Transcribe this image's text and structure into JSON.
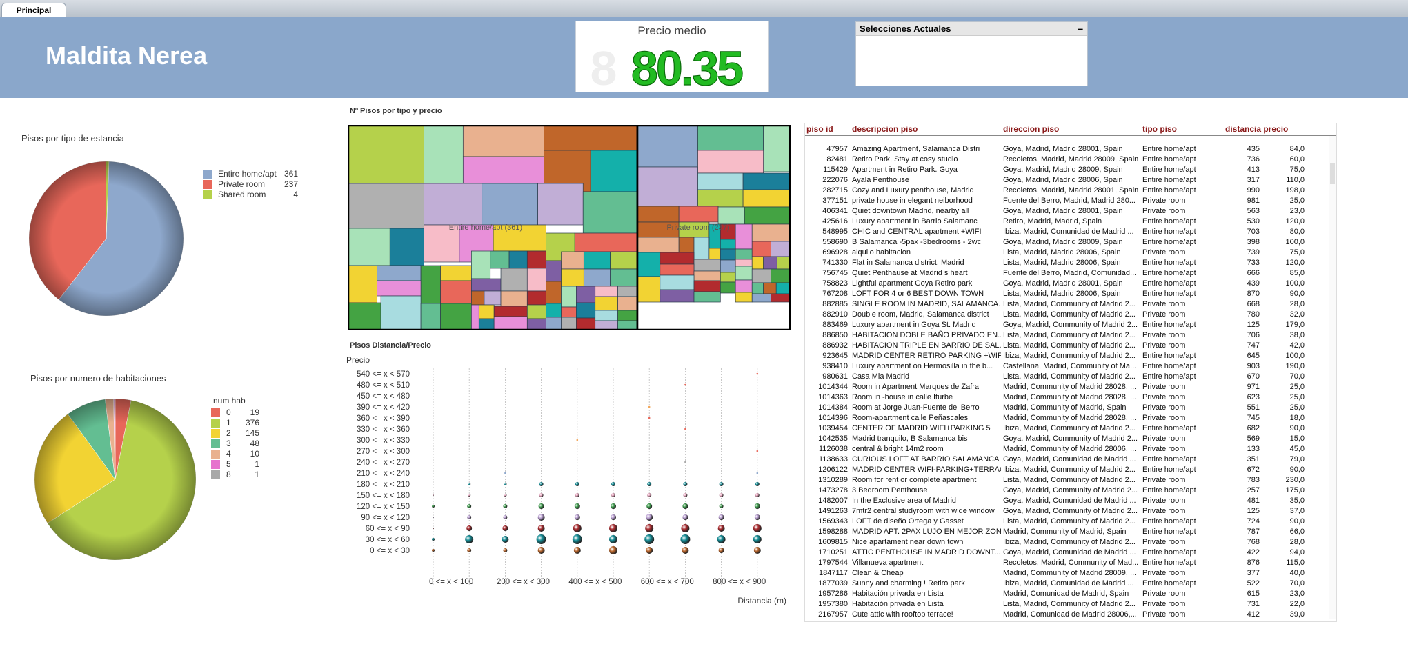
{
  "tabs": [
    {
      "label": "Principal"
    }
  ],
  "app_title": "Maldita Nerea",
  "kpi": {
    "label": "Precio medio",
    "value": "80.35",
    "ghost": "8",
    "color": "#22bb22"
  },
  "selections": {
    "title": "Selecciones Actuales",
    "minimize": "–"
  },
  "pie1": {
    "title": "Pisos por tipo de estancia",
    "chart_data": {
      "type": "pie",
      "categories": [
        "Entire home/apt",
        "Private room",
        "Shared room"
      ],
      "values": [
        361,
        237,
        4
      ],
      "colors": [
        "#8ea8cc",
        "#e8675a",
        "#b5d14b"
      ]
    }
  },
  "pie2": {
    "title": "Pisos por numero de habitaciones",
    "legend_title": "num hab",
    "chart_data": {
      "type": "pie",
      "categories": [
        "0",
        "1",
        "2",
        "3",
        "4",
        "5",
        "8"
      ],
      "values": [
        19,
        376,
        145,
        48,
        10,
        1,
        1
      ],
      "colors": [
        "#e8675a",
        "#b5d14b",
        "#f2d333",
        "#63be92",
        "#e9b18f",
        "#e673cd",
        "#a8a8a8"
      ]
    }
  },
  "treemap": {
    "title": "Nº Pisos por tipo y precio",
    "groups": [
      {
        "label": "Entire home/apt (361)"
      },
      {
        "label": "Private room (237)"
      }
    ]
  },
  "scatter": {
    "title": "Pisos Distancia/Precio",
    "ylabel": "Precio",
    "xlabel": "Distancia (m)",
    "chart_data": {
      "type": "scatter",
      "y_categories": [
        "540 <= x < 570",
        "480 <= x < 510",
        "450 <= x < 480",
        "390 <= x < 420",
        "360 <= x < 390",
        "330 <= x < 360",
        "300 <= x < 330",
        "270 <= x < 300",
        "240 <= x < 270",
        "210 <= x < 240",
        "180 <= x < 210",
        "150 <= x < 180",
        "120 <= x < 150",
        "90 <= x < 120",
        "60 <= x < 90",
        "30 <= x < 60",
        "0 <= x < 30"
      ],
      "x_tick_labels": [
        "0 <= x < 100",
        "200 <= x < 300",
        "400 <= x < 500",
        "600 <= x < 700",
        "800 <= x < 900"
      ]
    }
  },
  "table": {
    "columns": [
      "piso id",
      "descripcion piso",
      "direccion piso",
      "tipo piso",
      "distancia precio"
    ],
    "rows": [
      [
        "47957",
        "Amazing Apartment, Salamanca Distri",
        "Goya, Madrid, Madrid 28001, Spain",
        "Entire home/apt",
        "435",
        "84,0"
      ],
      [
        "82481",
        "Retiro Park, Stay at cosy studio",
        "Recoletos, Madrid, Madrid 28009, Spain",
        "Entire home/apt",
        "736",
        "60,0"
      ],
      [
        "115429",
        "Apartment in Retiro Park. Goya",
        "Goya, Madrid, Madrid 28009, Spain",
        "Entire home/apt",
        "413",
        "75,0"
      ],
      [
        "222076",
        "Ayala Penthouse",
        "Goya, Madrid, Madrid 28006, Spain",
        "Entire home/apt",
        "317",
        "110,0"
      ],
      [
        "282715",
        "Cozy and Luxury penthouse, Madrid",
        "Recoletos, Madrid, Madrid 28001, Spain",
        "Entire home/apt",
        "990",
        "198,0"
      ],
      [
        "377151",
        "private house in elegant neiborhood",
        "Fuente del Berro, Madrid, Madrid 280...",
        "Private room",
        "981",
        "25,0"
      ],
      [
        "406341",
        "Quiet downtown Madrid, nearby all",
        "Goya, Madrid, Madrid 28001, Spain",
        "Private room",
        "563",
        "23,0"
      ],
      [
        "425616",
        "Luxury apartment in Barrio Salamanc",
        "Retiro, Madrid, Madrid, Spain",
        "Entire home/apt",
        "530",
        "120,0"
      ],
      [
        "548995",
        "CHIC and CENTRAL apartment +WIFI",
        "Ibiza, Madrid, Comunidad de Madrid ...",
        "Entire home/apt",
        "703",
        "80,0"
      ],
      [
        "558690",
        "B Salamanca -5pax -3bedrooms - 2wc",
        "Goya, Madrid, Madrid 28009, Spain",
        "Entire home/apt",
        "398",
        "100,0"
      ],
      [
        "696928",
        "alquilo habitacion",
        "Lista, Madrid, Madrid 28006, Spain",
        "Private room",
        "739",
        "75,0"
      ],
      [
        "741330",
        "Flat in Salamanca district, Madrid",
        "Lista, Madrid, Madrid 28006, Spain",
        "Entire home/apt",
        "733",
        "120,0"
      ],
      [
        "756745",
        "Quiet Penthause at Madrid s heart",
        "Fuente del Berro, Madrid, Comunidad...",
        "Entire home/apt",
        "666",
        "85,0"
      ],
      [
        "758823",
        "Lightful apartment Goya Retiro park",
        "Goya, Madrid, Madrid 28001, Spain",
        "Entire home/apt",
        "439",
        "100,0"
      ],
      [
        "767208",
        "LOFT FOR 4 or 6 BEST DOWN TOWN",
        "Lista, Madrid, Madrid 28006, Spain",
        "Entire home/apt",
        "870",
        "90,0"
      ],
      [
        "882885",
        "SINGLE ROOM IN MADRID, SALAMANCA...",
        "Lista, Madrid, Community of Madrid 2...",
        "Private room",
        "668",
        "28,0"
      ],
      [
        "882910",
        "Double room, Madrid, Salamanca district",
        "Lista, Madrid, Community of Madrid 2...",
        "Private room",
        "780",
        "32,0"
      ],
      [
        "883469",
        "Luxury apartment in Goya St. Madrid",
        "Goya, Madrid, Community of Madrid 2...",
        "Entire home/apt",
        "125",
        "179,0"
      ],
      [
        "886850",
        "HABITACION DOBLE BAÑO PRIVADO EN...",
        "Lista, Madrid, Community of Madrid 2...",
        "Private room",
        "706",
        "38,0"
      ],
      [
        "886932",
        "HABITACION TRIPLE EN BARRIO DE SAL...",
        "Lista, Madrid, Community of Madrid 2...",
        "Private room",
        "747",
        "42,0"
      ],
      [
        "923645",
        "MADRID CENTER RETIRO PARKING +WIFI",
        "Ibiza, Madrid, Community of Madrid 2...",
        "Entire home/apt",
        "645",
        "100,0"
      ],
      [
        "938410",
        "Luxury apartment on Hermosilla in the b...",
        "Castellana, Madrid, Community of Ma...",
        "Entire home/apt",
        "903",
        "190,0"
      ],
      [
        "980631",
        "Casa Mia Madrid",
        "Lista, Madrid, Community of Madrid 2...",
        "Entire home/apt",
        "670",
        "70,0"
      ],
      [
        "1014344",
        "Room in Apartment Marques de Zafra",
        "Madrid, Community of Madrid 28028, ...",
        "Private room",
        "971",
        "25,0"
      ],
      [
        "1014363",
        "Room in -house in calle Iturbe",
        "Madrid, Community of Madrid 28028, ...",
        "Private room",
        "623",
        "25,0"
      ],
      [
        "1014384",
        "Room at Jorge Juan-Fuente del Berro",
        "Madrid, Community of Madrid, Spain",
        "Private room",
        "551",
        "25,0"
      ],
      [
        "1014396",
        "Room-apartment calle Peñascales",
        "Madrid, Community of Madrid 28028, ...",
        "Private room",
        "745",
        "18,0"
      ],
      [
        "1039454",
        "CENTER OF MADRID WIFI+PARKING 5",
        "Ibiza, Madrid, Community of Madrid 2...",
        "Entire home/apt",
        "682",
        "90,0"
      ],
      [
        "1042535",
        "Madrid tranquilo, B Salamanca bis",
        "Goya, Madrid, Community of Madrid 2...",
        "Private room",
        "569",
        "15,0"
      ],
      [
        "1126038",
        "central & bright 14m2 room",
        "Madrid, Community of Madrid 28006, ...",
        "Private room",
        "133",
        "45,0"
      ],
      [
        "1138633",
        "CURIOUS LOFT AT BARRIO SALAMANCA",
        "Goya, Madrid, Comunidad de Madrid ...",
        "Entire home/apt",
        "351",
        "79,0"
      ],
      [
        "1206122",
        "MADRID CENTER WIFI-PARKING+TERRACE",
        "Ibiza, Madrid, Community of Madrid 2...",
        "Entire home/apt",
        "672",
        "90,0"
      ],
      [
        "1310289",
        "Room for rent or complete apartment",
        "Lista, Madrid, Community of Madrid 2...",
        "Private room",
        "783",
        "230,0"
      ],
      [
        "1473278",
        "3 Bedroom Penthouse",
        "Goya, Madrid, Community of Madrid 2...",
        "Entire home/apt",
        "257",
        "175,0"
      ],
      [
        "1482007",
        "In the Exclusive area of Madrid",
        "Goya, Madrid, Comunidad de Madrid ...",
        "Private room",
        "481",
        "35,0"
      ],
      [
        "1491263",
        "7mtr2 central studyroom with wide window",
        "Goya, Madrid, Community of Madrid 2...",
        "Private room",
        "125",
        "37,0"
      ],
      [
        "1569343",
        "LOFT de diseño Ortega y Gasset",
        "Lista, Madrid, Community of Madrid 2...",
        "Entire home/apt",
        "724",
        "90,0"
      ],
      [
        "1598288",
        "MADRID APT. 2PAX LUJO EN MEJOR ZONA",
        "Madrid, Community of Madrid, Spain",
        "Entire home/apt",
        "787",
        "66,0"
      ],
      [
        "1609815",
        "Nice apartament near down town",
        "Ibiza, Madrid, Community of Madrid 2...",
        "Private room",
        "768",
        "28,0"
      ],
      [
        "1710251",
        "ATTIC PENTHOUSE IN MADRID DOWNT...",
        "Goya, Madrid, Comunidad de Madrid ...",
        "Entire home/apt",
        "422",
        "94,0"
      ],
      [
        "1797544",
        "Villanueva apartment",
        "Recoletos, Madrid, Community of Mad...",
        "Entire home/apt",
        "876",
        "115,0"
      ],
      [
        "1847117",
        "Clean & Cheap",
        "Madrid, Community of Madrid 28009, ...",
        "Private room",
        "377",
        "40,0"
      ],
      [
        "1877039",
        "Sunny and charming ! Retiro park",
        "Ibiza, Madrid, Comunidad de Madrid ...",
        "Entire home/apt",
        "522",
        "70,0"
      ],
      [
        "1957286",
        "Habitación privada en Lista",
        "Madrid, Comunidad de Madrid, Spain",
        "Private room",
        "615",
        "23,0"
      ],
      [
        "1957380",
        "Habitación privada en Lista",
        "Lista, Madrid, Community of Madrid 2...",
        "Private room",
        "731",
        "22,0"
      ],
      [
        "2167957",
        "Cute attic with rooftop terrace!",
        "Madrid, Comunidad de Madrid 28006,...",
        "Private room",
        "412",
        "39,0"
      ]
    ]
  }
}
